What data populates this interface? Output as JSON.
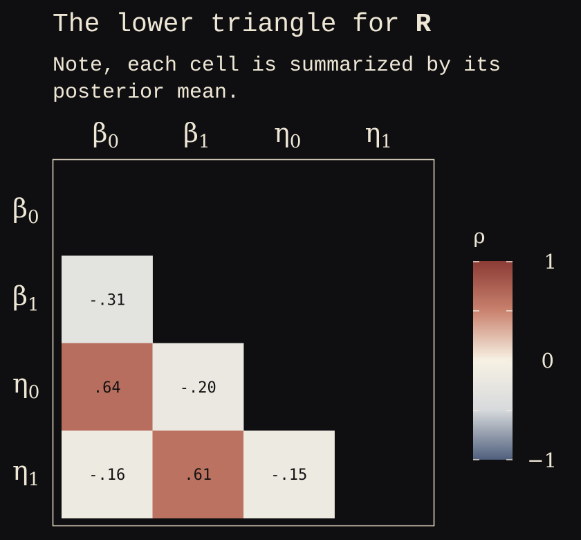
{
  "title": {
    "main": "The lower triangle for ",
    "bold": "R"
  },
  "subtitle": "Note, each cell is summarized by its posterior mean.",
  "chart_data": {
    "type": "heatmap",
    "variables": [
      "β0",
      "β1",
      "η0",
      "η1"
    ],
    "column_labels": [
      {
        "base": "β",
        "sub": "0"
      },
      {
        "base": "β",
        "sub": "1"
      },
      {
        "base": "η",
        "sub": "0"
      },
      {
        "base": "η",
        "sub": "1"
      }
    ],
    "row_labels": [
      {
        "base": "β",
        "sub": "0"
      },
      {
        "base": "β",
        "sub": "1"
      },
      {
        "base": "η",
        "sub": "0"
      },
      {
        "base": "η",
        "sub": "1"
      }
    ],
    "cells": [
      {
        "row": 1,
        "col": 0,
        "value": -0.31,
        "label": "-.31"
      },
      {
        "row": 2,
        "col": 0,
        "value": 0.64,
        "label": ".64"
      },
      {
        "row": 2,
        "col": 1,
        "value": -0.2,
        "label": "-.20"
      },
      {
        "row": 3,
        "col": 0,
        "value": -0.16,
        "label": "-.16"
      },
      {
        "row": 3,
        "col": 1,
        "value": 0.61,
        "label": ".61"
      },
      {
        "row": 3,
        "col": 2,
        "value": -0.15,
        "label": "-.15"
      }
    ],
    "colorbar": {
      "title": "ρ",
      "range": [
        -1,
        1
      ],
      "tick_labels": [
        "1",
        "0",
        "−1"
      ],
      "tick_values": [
        1,
        0,
        -1
      ],
      "colors": {
        "negative": "#4f5f7d",
        "mid_negative": "#d7dadc",
        "zero": "#f7f1e4",
        "mid_positive": "#c9826e",
        "positive": "#8b3b35"
      }
    }
  }
}
